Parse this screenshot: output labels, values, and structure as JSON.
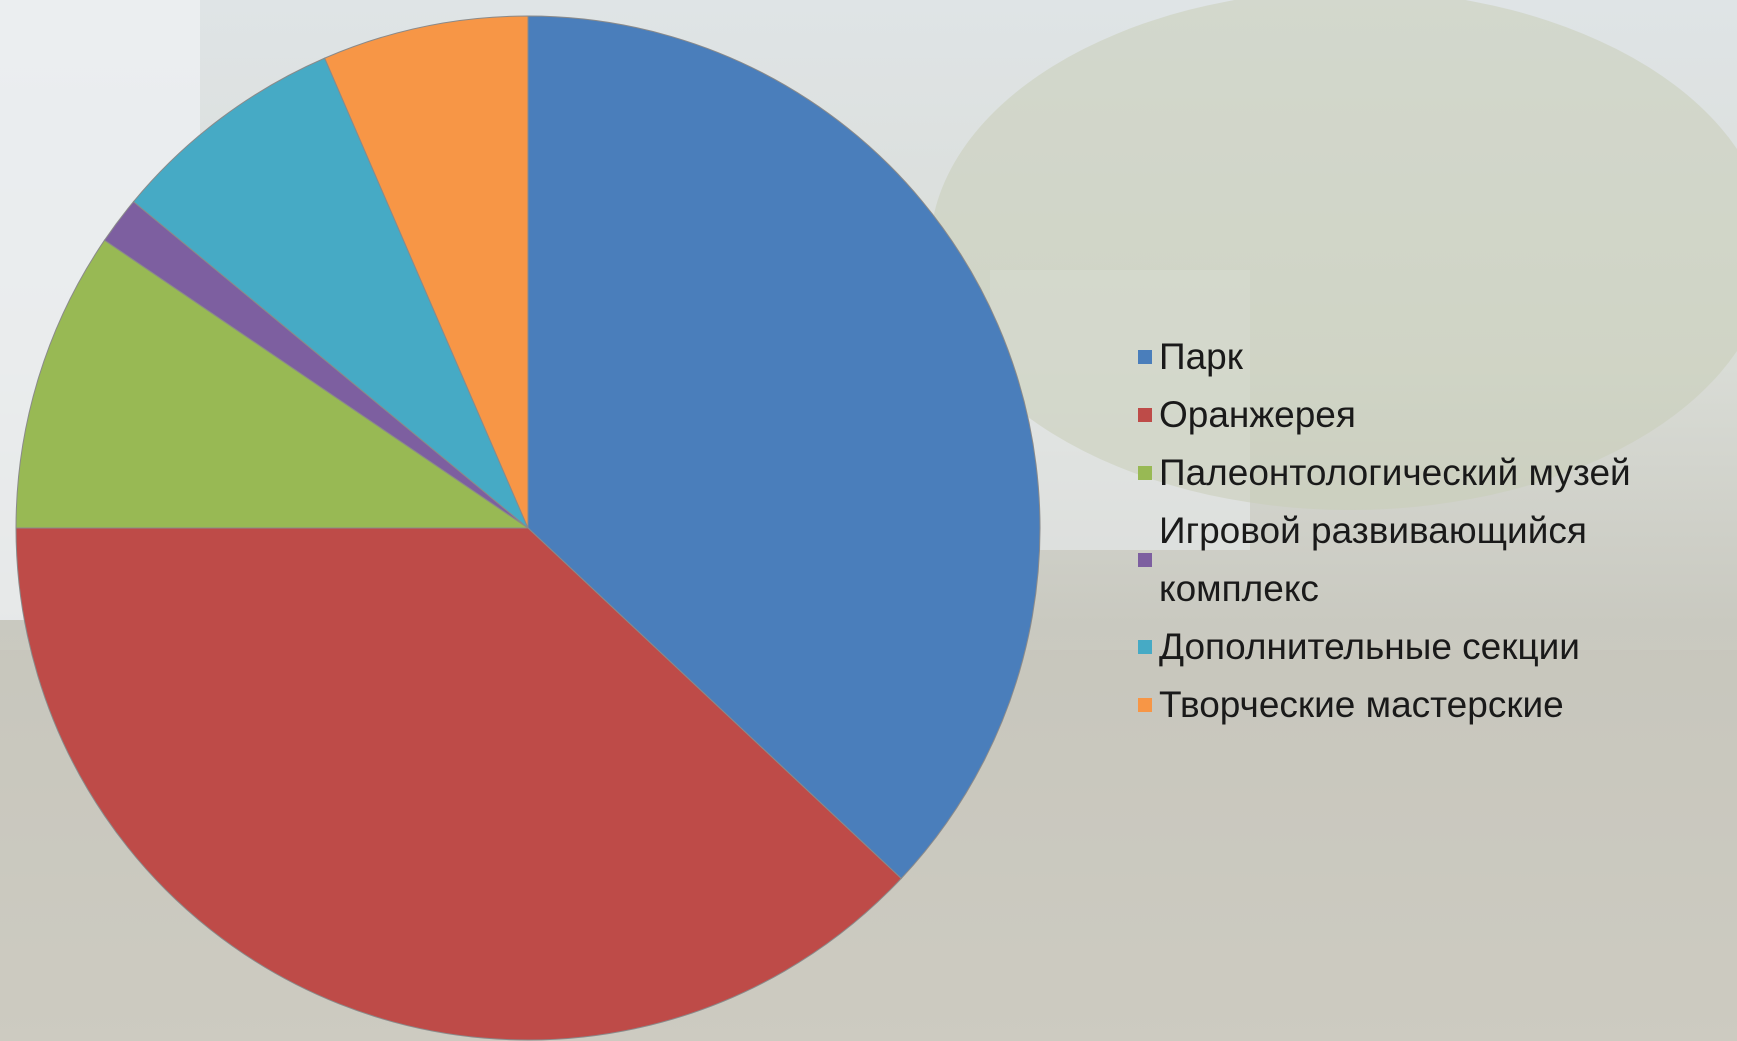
{
  "chart_data": {
    "type": "pie",
    "categories": [
      "Парк",
      "Оранжерея",
      "Палеонтологический музей",
      "Игровой развивающийся комплекс",
      "Дополнительные секции",
      "Творческие мастерские"
    ],
    "values": [
      37,
      38,
      9.5,
      1.5,
      7.5,
      6.5
    ],
    "colors": [
      "#4a7ebb",
      "#be4b48",
      "#98b954",
      "#7d5fa0",
      "#46aac5",
      "#f79646"
    ],
    "legend": "right"
  }
}
